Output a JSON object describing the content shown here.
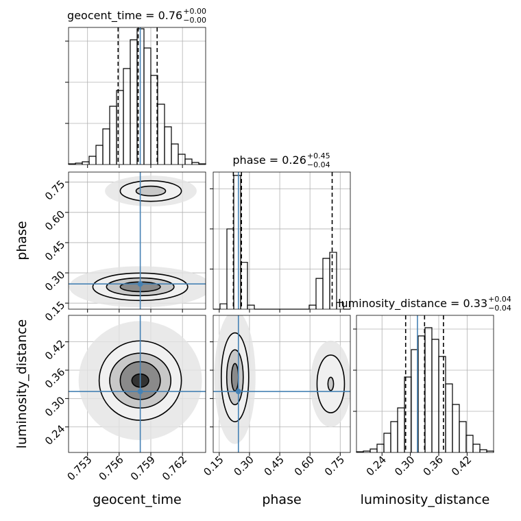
{
  "chart_data": {
    "type": "corner",
    "truth_color": "#4682b4",
    "grid": true,
    "parameters": [
      {
        "label": "geocent_time",
        "title": "geocent_time = 0.76",
        "plus": "+0.00",
        "minus": "−0.00",
        "lim": [
          0.7512,
          0.7642
        ],
        "ticks": [
          0.753,
          0.756,
          0.759,
          0.762
        ],
        "truth": 0.758,
        "quantiles": [
          0.7559,
          0.7578,
          0.7596
        ],
        "bins": [
          0.7512,
          0.75185,
          0.7525,
          0.75315,
          0.7538,
          0.75445,
          0.7551,
          0.75575,
          0.7564,
          0.75705,
          0.7577,
          0.75835,
          0.759,
          0.75965,
          0.7603,
          0.76095,
          0.7616,
          0.76225,
          0.7629,
          0.76355,
          0.7642
        ],
        "counts": [
          1,
          2,
          4,
          12,
          28,
          52,
          85,
          108,
          140,
          182,
          198,
          170,
          130,
          88,
          55,
          30,
          15,
          8,
          3,
          1
        ],
        "count_lim": [
          0,
          200
        ],
        "count_ticks": [
          60,
          120,
          180
        ]
      },
      {
        "label": "phase",
        "title": "phase = 0.26",
        "plus": "+0.45",
        "minus": "−0.04",
        "lim": [
          0.12,
          0.8
        ],
        "ticks": [
          0.15,
          {
            "value": 0.3,
            "label": "0.30"
          },
          0.45,
          {
            "value": 0.6,
            "label": "0.60"
          },
          0.75
        ],
        "truth": 0.245,
        "quantiles": [
          0.22,
          0.26,
          0.71
        ],
        "bins": [
          0.12,
          0.154,
          0.188,
          0.222,
          0.256,
          0.29,
          0.324,
          0.358,
          0.392,
          0.426,
          0.46,
          0.494,
          0.528,
          0.562,
          0.596,
          0.63,
          0.664,
          0.698,
          0.732,
          0.766,
          0.8
        ],
        "counts": [
          0,
          8,
          120,
          200,
          70,
          6,
          0,
          0,
          0,
          0,
          0,
          0,
          0,
          0,
          6,
          46,
          76,
          85,
          10,
          0
        ],
        "count_lim": [
          0,
          205
        ],
        "count_ticks": [
          60,
          120,
          180
        ]
      },
      {
        "label": "luminosity_distance",
        "title": "luminosity_distance = 0.33",
        "plus": "+0.04",
        "minus": "−0.04",
        "lim": [
          0.186,
          0.476
        ],
        "ticks": [
          0.24,
          {
            "value": 0.3,
            "label": "0.30"
          },
          0.36,
          0.42
        ],
        "truth": 0.315,
        "quantiles": [
          0.29,
          0.33,
          0.37
        ],
        "bins": [
          0.186,
          0.2005,
          0.215,
          0.2295,
          0.244,
          0.2585,
          0.273,
          0.2875,
          0.302,
          0.3165,
          0.331,
          0.3455,
          0.36,
          0.3745,
          0.389,
          0.4035,
          0.418,
          0.4325,
          0.447,
          0.4615,
          0.476
        ],
        "counts": [
          1,
          2,
          5,
          12,
          28,
          45,
          65,
          110,
          150,
          170,
          182,
          165,
          140,
          100,
          70,
          45,
          25,
          12,
          4,
          2
        ],
        "count_lim": [
          0,
          200
        ],
        "count_ticks": [
          60,
          120,
          180
        ]
      }
    ],
    "pairs": [
      {
        "x": 0,
        "y": 1,
        "modes": [
          {
            "center": [
              0.758,
              0.231
            ],
            "levels": [
              [
                0.0045,
                0.068
              ],
              [
                0.0032,
                0.044
              ],
              [
                0.0019,
                0.024
              ]
            ]
          },
          {
            "center": [
              0.759,
              0.706
            ],
            "levels": [
              [
                0.0029,
                0.051
              ],
              [
                0.0014,
                0.024
              ]
            ]
          }
        ]
      },
      {
        "x": 0,
        "y": 2,
        "modes": [
          {
            "center": [
              0.758,
              0.338
            ],
            "levels": [
              [
                0.0039,
                0.084
              ],
              [
                0.0029,
                0.058
              ],
              [
                0.0019,
                0.04
              ],
              [
                0.0008,
                0.014
              ]
            ]
          }
        ]
      },
      {
        "x": 1,
        "y": 2,
        "modes": [
          {
            "center": [
              0.228,
              0.345
            ],
            "levels": [
              [
                0.068,
                0.094
              ],
              [
                0.041,
                0.058
              ],
              [
                0.017,
                0.029
              ]
            ]
          },
          {
            "center": [
              0.703,
              0.331
            ],
            "levels": [
              [
                0.068,
                0.061
              ],
              [
                0.014,
                0.014
              ]
            ]
          }
        ]
      }
    ]
  }
}
